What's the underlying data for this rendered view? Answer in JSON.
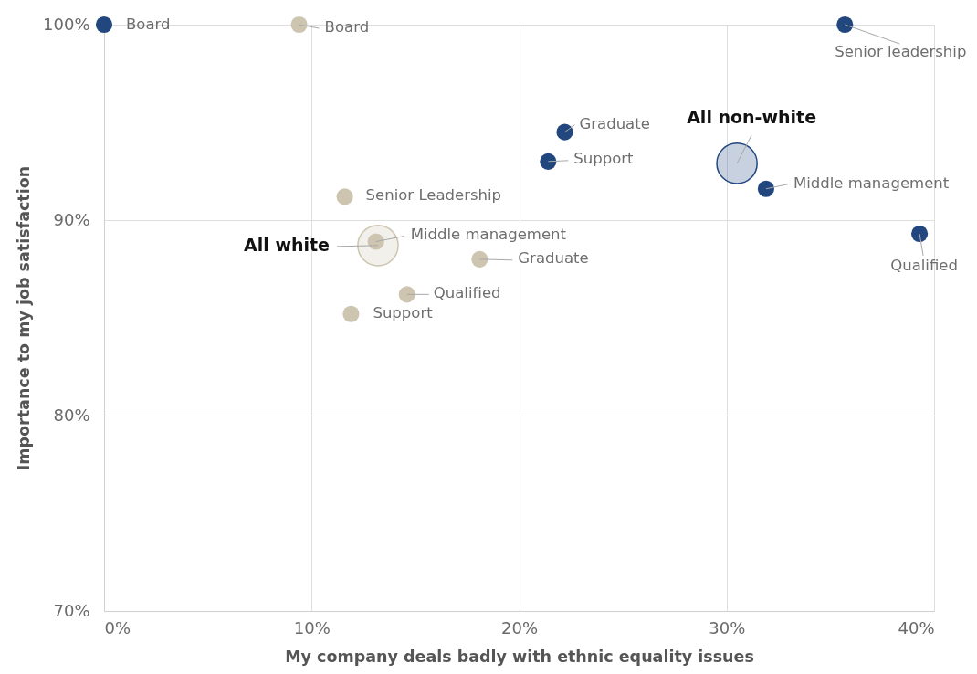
{
  "chart_data": {
    "type": "scatter",
    "xlabel": "My company deals badly with ethnic equality issues",
    "ylabel": "Importance to my job satisfaction",
    "xlim": [
      0,
      40
    ],
    "xticks": [
      {
        "value": 0,
        "label": "0%"
      },
      {
        "value": 10,
        "label": "10%"
      },
      {
        "value": 20,
        "label": "20%"
      },
      {
        "value": 30,
        "label": "30%"
      },
      {
        "value": 40,
        "label": "40%"
      }
    ],
    "ylim": [
      70,
      100
    ],
    "yticks": [
      {
        "value": 70,
        "label": "70%"
      },
      {
        "value": 80,
        "label": "80%"
      },
      {
        "value": 90,
        "label": "90%"
      },
      {
        "value": 100,
        "label": "100%"
      }
    ],
    "grid": true,
    "marker": "circle",
    "series": [
      {
        "name": "All non-white",
        "type": "bubble",
        "color": "#22477f",
        "x": [
          30.5
        ],
        "values": [
          92.9
        ],
        "sizes": [
          1
        ]
      },
      {
        "name": "All white",
        "type": "bubble",
        "color": "#cdc5b0",
        "x": [
          13.2
        ],
        "values": [
          88.7
        ],
        "sizes": [
          1
        ]
      },
      {
        "color": "#22477f",
        "x": [
          0,
          35.7,
          22.2,
          21.4,
          31.9,
          39.3
        ],
        "values": [
          100,
          100,
          94.5,
          93.0,
          91.6,
          89.3
        ]
      },
      {
        "color": "#cdc5b0",
        "x": [
          9.4,
          11.6,
          13.1,
          18.1,
          14.6,
          11.9
        ],
        "values": [
          100,
          91.2,
          88.9,
          88.0,
          86.2,
          85.2
        ]
      }
    ],
    "annotations": [
      {
        "text": "Board",
        "x": 0,
        "y": 100
      },
      {
        "text": "Senior leadership",
        "x": 35.7,
        "y": 100
      },
      {
        "text": "Graduate",
        "x": 22.2,
        "y": 94.5
      },
      {
        "text": "Support",
        "x": 21.4,
        "y": 93.0
      },
      {
        "text": "Middle management",
        "x": 31.9,
        "y": 91.6
      },
      {
        "text": "Qualified",
        "x": 39.3,
        "y": 89.3
      },
      {
        "text": "Board",
        "x": 9.4,
        "y": 100
      },
      {
        "text": "Senior Leadership",
        "x": 11.6,
        "y": 91.2
      },
      {
        "text": "Middle management",
        "x": 13.1,
        "y": 88.9
      },
      {
        "text": "Graduate",
        "x": 18.1,
        "y": 88.0
      },
      {
        "text": "Qualified",
        "x": 14.6,
        "y": 86.2
      },
      {
        "text": "Support",
        "x": 11.9,
        "y": 85.2
      }
    ]
  }
}
